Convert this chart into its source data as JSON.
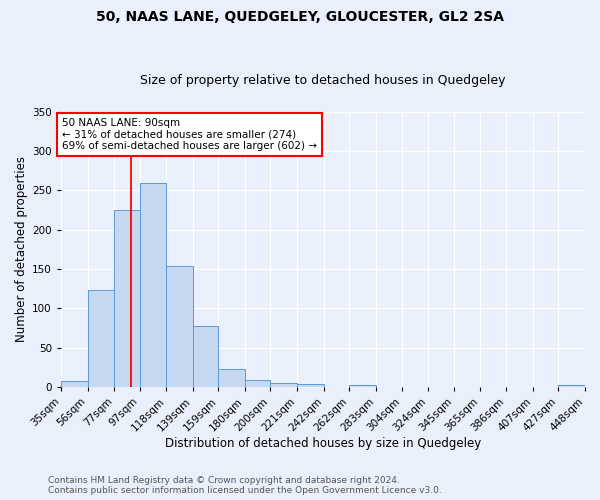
{
  "title": "50, NAAS LANE, QUEDGELEY, GLOUCESTER, GL2 2SA",
  "subtitle": "Size of property relative to detached houses in Quedgeley",
  "xlabel": "Distribution of detached houses by size in Quedgeley",
  "ylabel": "Number of detached properties",
  "footer_line1": "Contains HM Land Registry data © Crown copyright and database right 2024.",
  "footer_line2": "Contains public sector information licensed under the Open Government Licence v3.0.",
  "bin_labels": [
    "35sqm",
    "56sqm",
    "77sqm",
    "97sqm",
    "118sqm",
    "139sqm",
    "159sqm",
    "180sqm",
    "200sqm",
    "221sqm",
    "242sqm",
    "262sqm",
    "283sqm",
    "304sqm",
    "324sqm",
    "345sqm",
    "365sqm",
    "386sqm",
    "407sqm",
    "427sqm",
    "448sqm"
  ],
  "bar_values": [
    7,
    123,
    225,
    260,
    154,
    77,
    23,
    9,
    5,
    4,
    0,
    3,
    0,
    0,
    0,
    0,
    0,
    0,
    0,
    3
  ],
  "bar_color": "#c5d8f0",
  "bar_edge_color": "#5b9bd5",
  "vline_x": 90,
  "annotation_text": "50 NAAS LANE: 90sqm\n← 31% of detached houses are smaller (274)\n69% of semi-detached houses are larger (602) →",
  "annotation_box_color": "white",
  "annotation_box_edge_color": "red",
  "vline_color": "red",
  "ylim": [
    0,
    350
  ],
  "yticks": [
    0,
    50,
    100,
    150,
    200,
    250,
    300,
    350
  ],
  "background_color": "#eaf0fb",
  "grid_color": "white",
  "title_fontsize": 10,
  "subtitle_fontsize": 9,
  "xlabel_fontsize": 8.5,
  "ylabel_fontsize": 8.5,
  "tick_fontsize": 7.5,
  "annotation_fontsize": 7.5,
  "footer_fontsize": 6.5
}
